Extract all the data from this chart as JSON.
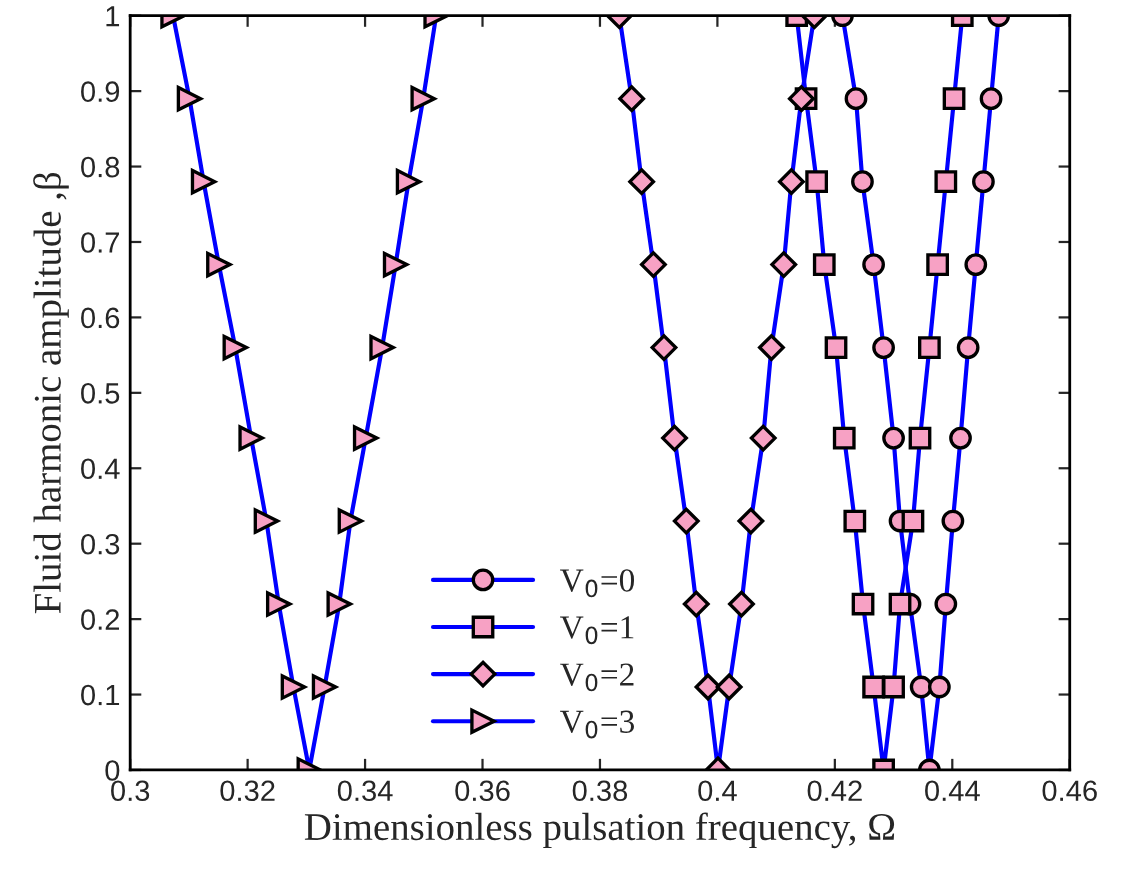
{
  "chart_data": {
    "type": "line",
    "xlabel": "Dimensionless pulsation frequency, Ω",
    "ylabel": "Fluid harmonic amplitude ,β",
    "xlim": [
      0.3,
      0.46
    ],
    "xticks": [
      0.3,
      0.32,
      0.34,
      0.36,
      0.38,
      0.4,
      0.42,
      0.44,
      0.46
    ],
    "ylim": [
      0,
      1
    ],
    "yticks": [
      0,
      0.1,
      0.2,
      0.3,
      0.4,
      0.5,
      0.6,
      0.7,
      0.8,
      0.9,
      1
    ],
    "grid": false,
    "legend": "bottom",
    "line_style": "solid",
    "series": [
      {
        "name": "V$_{0}$=0",
        "color": "#0000ff",
        "marker": "circle",
        "x": [
          0.4213,
          0.4236,
          0.4247,
          0.4266,
          0.4283,
          0.43,
          0.4311,
          0.4328,
          0.4347,
          0.4361,
          0.4378,
          0.4389,
          0.4401,
          0.4414,
          0.4427,
          0.444,
          0.4453,
          0.4466,
          0.4479
        ],
        "values": [
          1,
          0.89,
          0.78,
          0.67,
          0.56,
          0.44,
          0.33,
          0.22,
          0.11,
          0,
          0.11,
          0.22,
          0.33,
          0.44,
          0.56,
          0.67,
          0.78,
          0.89,
          1
        ]
      },
      {
        "name": "V$_{0}$=1",
        "color": "#0000ff",
        "marker": "square",
        "x": [
          0.4135,
          0.4151,
          0.4169,
          0.4182,
          0.4202,
          0.4216,
          0.4234,
          0.4248,
          0.4266,
          0.4283,
          0.43,
          0.4311,
          0.4333,
          0.4345,
          0.4361,
          0.4375,
          0.4389,
          0.4403,
          0.4417
        ],
        "values": [
          1,
          0.89,
          0.78,
          0.67,
          0.56,
          0.44,
          0.33,
          0.22,
          0.11,
          0,
          0.11,
          0.22,
          0.33,
          0.44,
          0.56,
          0.67,
          0.78,
          0.89,
          1
        ]
      },
      {
        "name": "V$_{0}$=2",
        "color": "#0000ff",
        "marker": "diamond",
        "x": [
          0.3833,
          0.3854,
          0.3871,
          0.3891,
          0.3909,
          0.3927,
          0.3947,
          0.3964,
          0.3984,
          0.4001,
          0.402,
          0.4041,
          0.4057,
          0.4078,
          0.4092,
          0.4113,
          0.4126,
          0.4143,
          0.4165
        ],
        "values": [
          1,
          0.89,
          0.78,
          0.67,
          0.56,
          0.44,
          0.33,
          0.22,
          0.11,
          0,
          0.11,
          0.22,
          0.33,
          0.44,
          0.56,
          0.67,
          0.78,
          0.89,
          1
        ]
      },
      {
        "name": "V$_{0}$=3",
        "color": "#0000ff",
        "marker": "triangle",
        "x": [
          0.3073,
          0.3101,
          0.3125,
          0.3151,
          0.3179,
          0.3206,
          0.3232,
          0.3253,
          0.3278,
          0.3305,
          0.3331,
          0.3356,
          0.3375,
          0.3401,
          0.3429,
          0.3452,
          0.3474,
          0.3499,
          0.3521
        ],
        "values": [
          1,
          0.89,
          0.78,
          0.67,
          0.56,
          0.44,
          0.33,
          0.22,
          0.11,
          0,
          0.11,
          0.22,
          0.33,
          0.44,
          0.56,
          0.67,
          0.78,
          0.89,
          1
        ]
      }
    ]
  }
}
